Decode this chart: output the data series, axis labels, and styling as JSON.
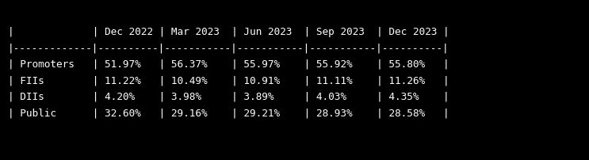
{
  "bg_color": "#000000",
  "text_color": "#ffffff",
  "font_family": "monospace",
  "font_size": 9.2,
  "table_text": "|             | Dec 2022 | Mar 2023  | Jun 2023  | Sep 2023  | Dec 2023 |\n|-------------|----------|-----------|-----------|-----------|----------|\n| Promoters   | 51.97%   | 56.37%    | 55.97%    | 55.92%    | 55.80%   |\n| FIIs        | 11.22%   | 10.49%    | 10.91%    | 11.11%    | 11.26%   |\n| DIIs        | 4.20%    | 3.98%     | 3.89%     | 4.03%     | 4.35%    |\n| Public      | 32.60%   | 29.16%    | 29.21%    | 28.93%    | 28.58%   |"
}
